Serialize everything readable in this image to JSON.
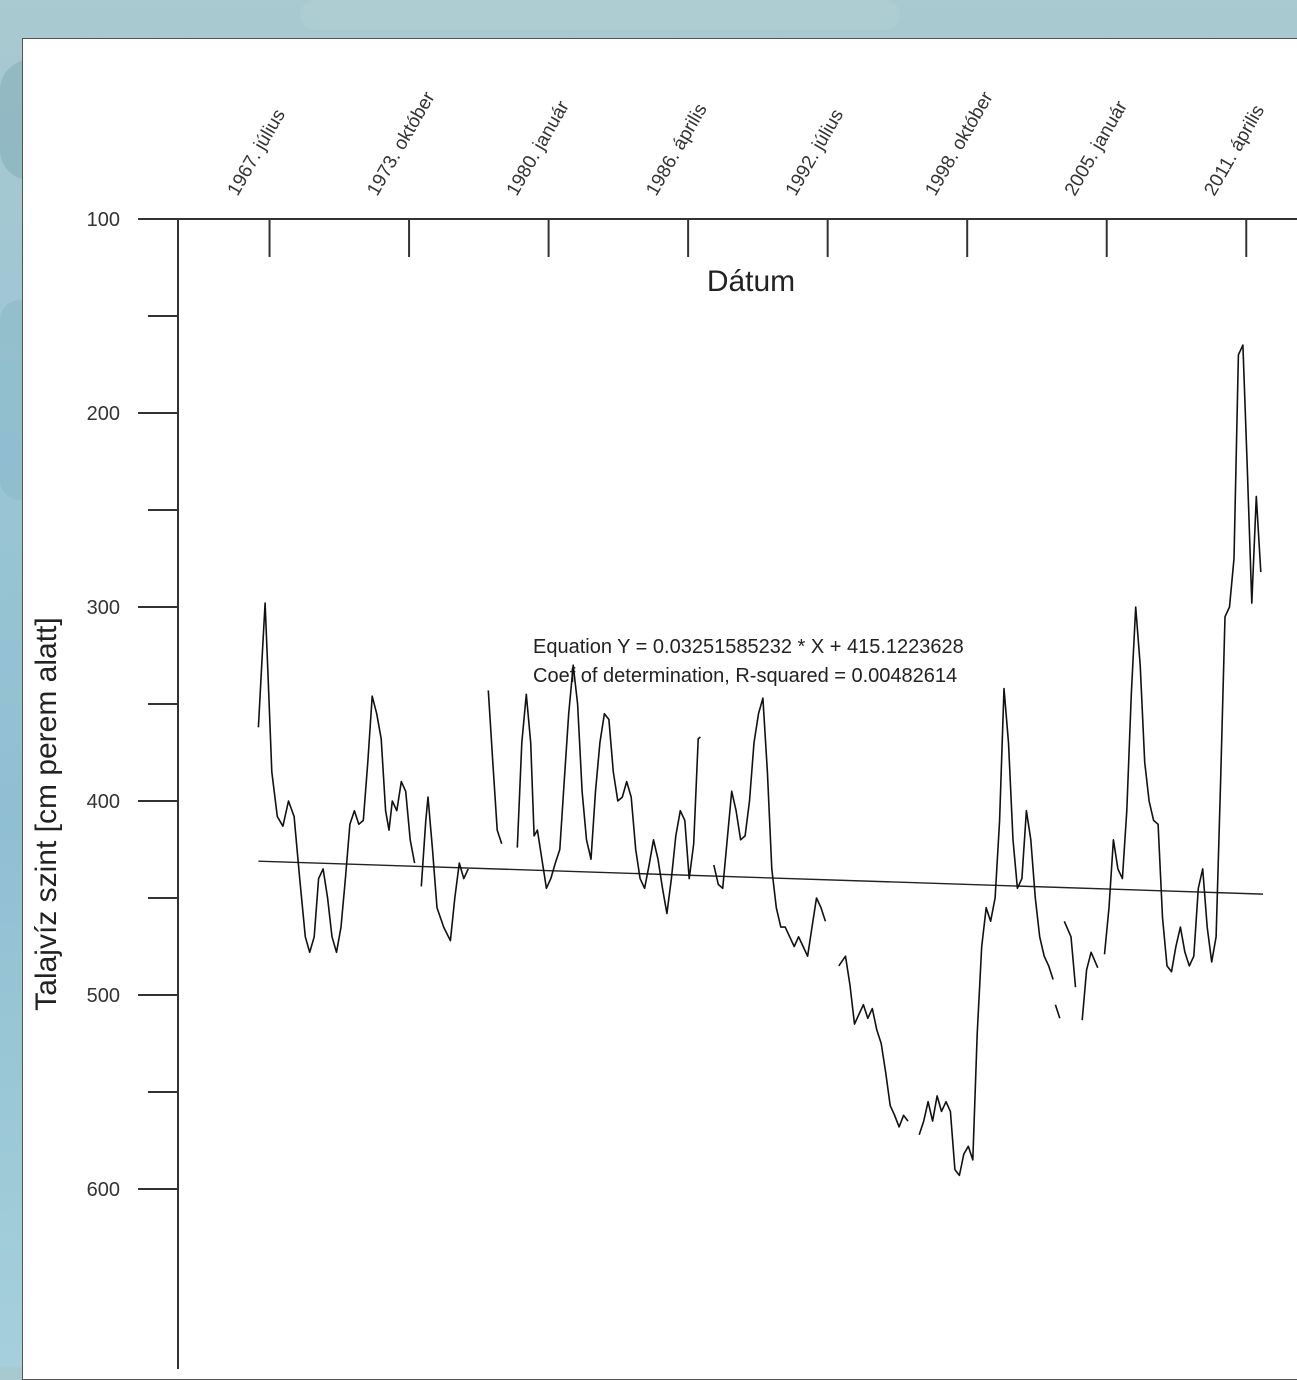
{
  "chart_data": {
    "type": "line",
    "title": "",
    "xlabel": "Dátum",
    "ylabel": "Talajvíz szint [cm perem alatt]",
    "y_axis_inverted": true,
    "ylim": [
      100,
      600
    ],
    "y_ticks": [
      "100",
      "200",
      "300",
      "400",
      "500",
      "600"
    ],
    "x_tick_labels": [
      "1967. július",
      "1973. október",
      "1980. január",
      "1986. április",
      "1992. július",
      "1998. október",
      "2005. január",
      "2011. április"
    ],
    "x_tick_years": [
      1967.5,
      1973.75,
      1980.0,
      1986.25,
      1992.5,
      1998.75,
      2005.0,
      2011.25
    ],
    "xlim": [
      1963.4,
      2012.0
    ],
    "annotation": {
      "line1": "Equation Y = 0.03251585232 * X + 415.1223628",
      "line2": "Coef of determination, R-squared = 0.00482614"
    },
    "trend_line": {
      "x": [
        1967.0,
        2012.0
      ],
      "y": [
        431,
        448
      ]
    },
    "series": [
      {
        "segments": [
          [
            [
              1967.0,
              362
            ],
            [
              1967.15,
              330
            ],
            [
              1967.3,
              298
            ],
            [
              1967.45,
              340
            ],
            [
              1967.6,
              385
            ],
            [
              1967.85,
              408
            ],
            [
              1968.1,
              413
            ],
            [
              1968.35,
              400
            ],
            [
              1968.6,
              408
            ],
            [
              1968.85,
              440
            ],
            [
              1969.1,
              470
            ],
            [
              1969.3,
              478
            ],
            [
              1969.5,
              470
            ],
            [
              1969.7,
              440
            ],
            [
              1969.9,
              435
            ],
            [
              1970.1,
              450
            ],
            [
              1970.3,
              470
            ],
            [
              1970.5,
              478
            ],
            [
              1970.7,
              465
            ],
            [
              1970.9,
              440
            ],
            [
              1971.1,
              412
            ],
            [
              1971.3,
              405
            ],
            [
              1971.5,
              412
            ],
            [
              1971.7,
              410
            ],
            [
              1971.9,
              380
            ],
            [
              1972.1,
              346
            ],
            [
              1972.3,
              355
            ],
            [
              1972.5,
              368
            ],
            [
              1972.7,
              405
            ],
            [
              1972.85,
              415
            ],
            [
              1973.0,
              400
            ],
            [
              1973.2,
              405
            ],
            [
              1973.4,
              390
            ],
            [
              1973.6,
              395
            ],
            [
              1973.8,
              420
            ],
            [
              1974.0,
              432
            ]
          ],
          [
            [
              1974.3,
              444
            ],
            [
              1974.5,
              410
            ],
            [
              1974.6,
              398
            ],
            [
              1974.8,
              425
            ],
            [
              1975.0,
              455
            ],
            [
              1975.3,
              465
            ],
            [
              1975.6,
              472
            ],
            [
              1975.8,
              450
            ],
            [
              1976.0,
              432
            ],
            [
              1976.2,
              440
            ],
            [
              1976.4,
              435
            ]
          ],
          [
            [
              1977.3,
              343
            ],
            [
              1977.5,
              380
            ],
            [
              1977.7,
              415
            ],
            [
              1977.9,
              422
            ]
          ],
          [
            [
              1978.6,
              424
            ],
            [
              1978.8,
              370
            ],
            [
              1979.0,
              345
            ],
            [
              1979.2,
              370
            ],
            [
              1979.35,
              418
            ],
            [
              1979.5,
              415
            ],
            [
              1979.7,
              430
            ],
            [
              1979.9,
              445
            ],
            [
              1980.1,
              440
            ],
            [
              1980.3,
              432
            ],
            [
              1980.5,
              425
            ],
            [
              1980.7,
              390
            ],
            [
              1980.9,
              355
            ],
            [
              1981.1,
              330
            ],
            [
              1981.3,
              350
            ],
            [
              1981.5,
              395
            ],
            [
              1981.7,
              420
            ],
            [
              1981.9,
              430
            ],
            [
              1982.1,
              395
            ],
            [
              1982.3,
              370
            ],
            [
              1982.5,
              355
            ],
            [
              1982.7,
              358
            ],
            [
              1982.9,
              385
            ],
            [
              1983.1,
              400
            ],
            [
              1983.3,
              398
            ],
            [
              1983.5,
              390
            ],
            [
              1983.7,
              398
            ],
            [
              1983.9,
              425
            ],
            [
              1984.1,
              440
            ],
            [
              1984.3,
              445
            ],
            [
              1984.5,
              433
            ],
            [
              1984.7,
              420
            ],
            [
              1984.9,
              430
            ],
            [
              1985.1,
              445
            ],
            [
              1985.3,
              458
            ],
            [
              1985.5,
              440
            ],
            [
              1985.7,
              418
            ],
            [
              1985.9,
              405
            ],
            [
              1986.1,
              410
            ],
            [
              1986.3,
              440
            ],
            [
              1986.5,
              422
            ],
            [
              1986.7,
              368
            ],
            [
              1986.8,
              367
            ]
          ],
          [
            [
              1987.4,
              433
            ],
            [
              1987.6,
              443
            ],
            [
              1987.8,
              445
            ],
            [
              1988.0,
              420
            ],
            [
              1988.2,
              395
            ],
            [
              1988.4,
              405
            ],
            [
              1988.6,
              420
            ],
            [
              1988.8,
              418
            ],
            [
              1989.0,
              400
            ],
            [
              1989.2,
              370
            ],
            [
              1989.4,
              355
            ],
            [
              1989.6,
              347
            ],
            [
              1989.8,
              385
            ],
            [
              1990.0,
              435
            ],
            [
              1990.2,
              455
            ],
            [
              1990.4,
              465
            ],
            [
              1990.6,
              465
            ],
            [
              1990.8,
              470
            ],
            [
              1991.0,
              475
            ],
            [
              1991.2,
              470
            ],
            [
              1991.4,
              475
            ],
            [
              1991.6,
              480
            ],
            [
              1991.8,
              465
            ],
            [
              1992.0,
              450
            ],
            [
              1992.2,
              455
            ],
            [
              1992.4,
              462
            ]
          ],
          [
            [
              1993.0,
              485
            ],
            [
              1993.3,
              480
            ],
            [
              1993.5,
              495
            ],
            [
              1993.7,
              515
            ],
            [
              1993.9,
              510
            ],
            [
              1994.1,
              505
            ],
            [
              1994.3,
              512
            ],
            [
              1994.5,
              507
            ],
            [
              1994.7,
              518
            ],
            [
              1994.9,
              525
            ],
            [
              1995.1,
              540
            ],
            [
              1995.3,
              557
            ],
            [
              1995.5,
              562
            ],
            [
              1995.7,
              568
            ],
            [
              1995.9,
              562
            ],
            [
              1996.1,
              565
            ]
          ],
          [
            [
              1996.6,
              572
            ],
            [
              1996.8,
              565
            ],
            [
              1997.0,
              555
            ],
            [
              1997.2,
              565
            ],
            [
              1997.4,
              552
            ],
            [
              1997.6,
              560
            ],
            [
              1997.8,
              555
            ],
            [
              1998.0,
              560
            ],
            [
              1998.2,
              590
            ],
            [
              1998.4,
              593
            ],
            [
              1998.6,
              582
            ],
            [
              1998.8,
              578
            ],
            [
              1999.0,
              585
            ],
            [
              1999.2,
              520
            ],
            [
              1999.4,
              475
            ],
            [
              1999.6,
              455
            ],
            [
              1999.8,
              462
            ],
            [
              2000.0,
              450
            ],
            [
              2000.2,
              410
            ],
            [
              2000.4,
              342
            ],
            [
              2000.6,
              370
            ],
            [
              2000.8,
              420
            ],
            [
              2001.0,
              445
            ],
            [
              2001.2,
              440
            ],
            [
              2001.4,
              405
            ],
            [
              2001.6,
              420
            ],
            [
              2001.8,
              450
            ],
            [
              2002.0,
              470
            ],
            [
              2002.2,
              480
            ],
            [
              2002.4,
              485
            ],
            [
              2002.6,
              492
            ]
          ],
          [
            [
              2002.7,
              505
            ],
            [
              2002.9,
              512
            ]
          ],
          [
            [
              2003.1,
              462
            ],
            [
              2003.4,
              470
            ],
            [
              2003.6,
              496
            ]
          ],
          [
            [
              2003.9,
              513
            ],
            [
              2004.1,
              487
            ],
            [
              2004.3,
              478
            ],
            [
              2004.6,
              486
            ]
          ],
          [
            [
              2004.9,
              479
            ],
            [
              2005.1,
              455
            ],
            [
              2005.3,
              420
            ],
            [
              2005.5,
              435
            ],
            [
              2005.7,
              440
            ],
            [
              2005.9,
              405
            ],
            [
              2006.1,
              345
            ],
            [
              2006.3,
              300
            ],
            [
              2006.5,
              330
            ],
            [
              2006.7,
              380
            ],
            [
              2006.9,
              400
            ],
            [
              2007.1,
              410
            ],
            [
              2007.3,
              412
            ],
            [
              2007.5,
              460
            ],
            [
              2007.7,
              485
            ],
            [
              2007.9,
              488
            ],
            [
              2008.1,
              475
            ],
            [
              2008.3,
              465
            ],
            [
              2008.5,
              478
            ],
            [
              2008.7,
              485
            ],
            [
              2008.9,
              480
            ],
            [
              2009.1,
              445
            ],
            [
              2009.3,
              435
            ],
            [
              2009.5,
              465
            ],
            [
              2009.7,
              483
            ],
            [
              2009.9,
              470
            ],
            [
              2010.1,
              390
            ],
            [
              2010.3,
              305
            ],
            [
              2010.5,
              300
            ],
            [
              2010.7,
              275
            ],
            [
              2010.9,
              170
            ],
            [
              2011.1,
              165
            ],
            [
              2011.3,
              230
            ],
            [
              2011.5,
              298
            ],
            [
              2011.7,
              243
            ],
            [
              2011.9,
              282
            ]
          ]
        ]
      }
    ]
  }
}
